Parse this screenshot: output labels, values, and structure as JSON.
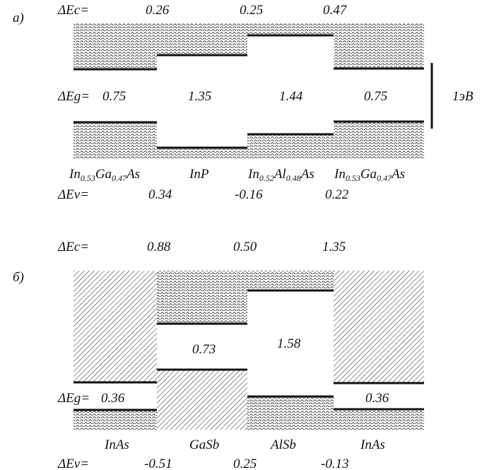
{
  "colors": {
    "line": "#111111",
    "hatch": "#333333",
    "background": "#ffffff"
  },
  "panel_a": {
    "letter": "а)",
    "dEc_label": "ΔEc=",
    "dEc_values": [
      "0.26",
      "0.25",
      "0.47"
    ],
    "dEg_label": "ΔEg=",
    "dEg_values": [
      "0.75",
      "1.35",
      "1.44",
      "0.75"
    ],
    "scale_label": "1эВ",
    "dEv_label": "ΔEv=",
    "dEv_values": [
      "0.34",
      "-0.16",
      "0.22"
    ],
    "materials": [
      {
        "parts": [
          [
            "In",
            ""
          ],
          [
            "0.53",
            "sub"
          ],
          [
            "Ga",
            ""
          ],
          [
            "0.47",
            "sub"
          ],
          [
            "As",
            ""
          ]
        ]
      },
      {
        "parts": [
          [
            "InP",
            ""
          ]
        ]
      },
      {
        "parts": [
          [
            "In",
            ""
          ],
          [
            "0.52",
            "sub"
          ],
          [
            "Al",
            ""
          ],
          [
            "0.48",
            "sub"
          ],
          [
            "As",
            ""
          ]
        ]
      },
      {
        "parts": [
          [
            "In",
            ""
          ],
          [
            "0.53",
            "sub"
          ],
          [
            "Ga",
            ""
          ],
          [
            "0.47",
            "sub"
          ],
          [
            "As",
            ""
          ]
        ]
      }
    ]
  },
  "panel_b": {
    "letter": "б)",
    "dEc_label": "ΔEc=",
    "dEc_values": [
      "0.88",
      "0.50",
      "1.35"
    ],
    "dEg_label": "ΔEg=",
    "gap_values": [
      "0.36",
      "0.73",
      "1.58",
      "0.36"
    ],
    "materials": [
      "InAs",
      "GaSb",
      "AlSb",
      "InAs"
    ],
    "dEv_label": "ΔEv=",
    "dEv_values": [
      "-0.51",
      "0.25",
      "-0.13"
    ]
  }
}
